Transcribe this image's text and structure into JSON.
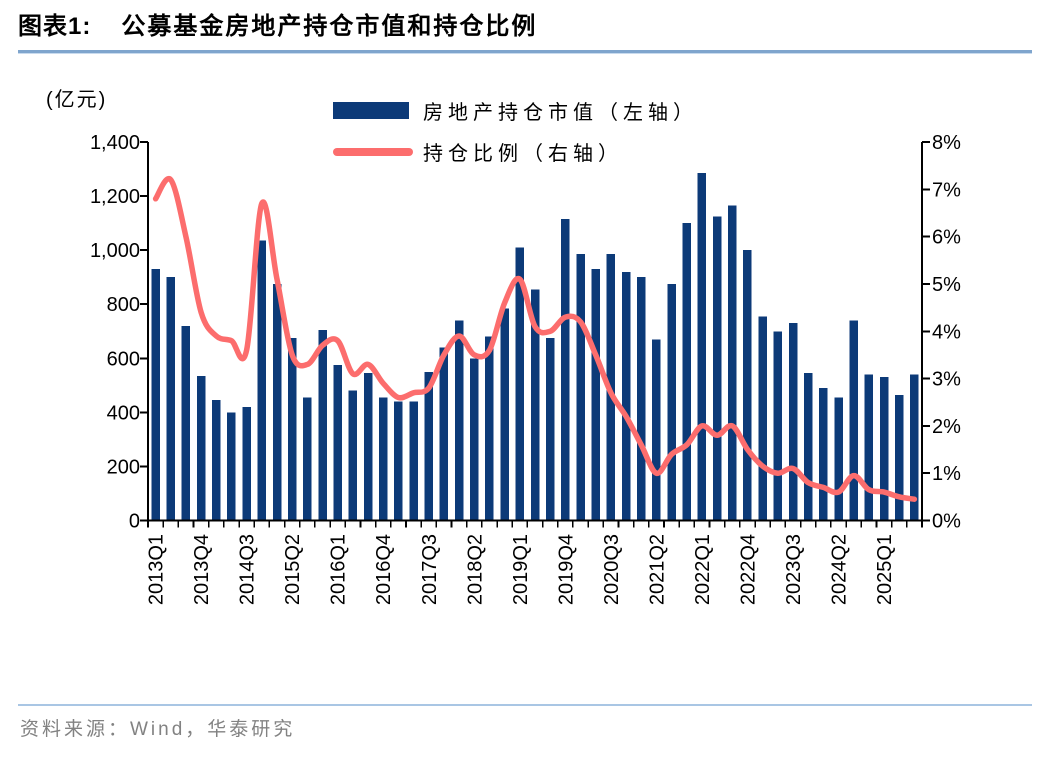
{
  "header": {
    "chart_label": "图表1:",
    "title": "公募基金房地产持仓市值和持仓比例"
  },
  "source": {
    "text": "资料来源：Wind，华泰研究"
  },
  "colors": {
    "bar": "#0c3a78",
    "line": "#fc6d6d",
    "axis": "#000000",
    "title_rule": "#7fa5cd",
    "footer_rule": "#a9c6e4",
    "source_text": "#828282"
  },
  "chart_data": {
    "type": "bar",
    "title": "公募基金房地产持仓市值和持仓比例",
    "grid": false,
    "legend_position": "top-center",
    "categories": [
      "2013Q1",
      "2013Q2",
      "2013Q3",
      "2013Q4",
      "2014Q1",
      "2014Q2",
      "2014Q3",
      "2014Q4",
      "2015Q1",
      "2015Q2",
      "2015Q3",
      "2015Q4",
      "2016Q1",
      "2016Q2",
      "2016Q3",
      "2016Q4",
      "2017Q1",
      "2017Q2",
      "2017Q3",
      "2017Q4",
      "2018Q1",
      "2018Q2",
      "2018Q3",
      "2018Q4",
      "2019Q1",
      "2019Q2",
      "2019Q3",
      "2019Q4",
      "2020Q1",
      "2020Q2",
      "2020Q3",
      "2020Q4",
      "2021Q1",
      "2021Q2",
      "2021Q3",
      "2021Q4",
      "2022Q1",
      "2022Q2",
      "2022Q3",
      "2022Q4",
      "2023Q1",
      "2023Q2",
      "2023Q3",
      "2023Q4",
      "2024Q1",
      "2024Q2",
      "2024Q3",
      "2024Q4",
      "2025Q1",
      "2025Q2",
      "2025Q3"
    ],
    "series": [
      {
        "name": "房地产持仓市值（左轴）",
        "type": "bar",
        "axis": "left",
        "unit": "亿元",
        "values": [
          930,
          900,
          720,
          535,
          445,
          400,
          420,
          1035,
          875,
          675,
          455,
          705,
          575,
          480,
          545,
          455,
          440,
          440,
          550,
          640,
          740,
          600,
          680,
          785,
          1010,
          855,
          675,
          1115,
          985,
          930,
          985,
          920,
          900,
          670,
          875,
          1100,
          1285,
          1125,
          1165,
          1000,
          755,
          700,
          730,
          545,
          490,
          455,
          740,
          540,
          530,
          465,
          540
        ]
      },
      {
        "name": "持仓比例（右轴）",
        "type": "line",
        "axis": "right",
        "unit": "%",
        "values": [
          6.8,
          7.2,
          6.0,
          4.4,
          3.9,
          3.8,
          3.6,
          6.7,
          5.1,
          3.5,
          3.3,
          3.7,
          3.8,
          3.1,
          3.3,
          2.9,
          2.6,
          2.7,
          2.8,
          3.5,
          3.9,
          3.5,
          3.6,
          4.6,
          5.1,
          4.1,
          4.0,
          4.3,
          4.2,
          3.5,
          2.7,
          2.2,
          1.6,
          1.0,
          1.4,
          1.6,
          2.0,
          1.8,
          2.0,
          1.5,
          1.15,
          1.0,
          1.1,
          0.8,
          0.7,
          0.6,
          0.95,
          0.65,
          0.6,
          0.5,
          0.45
        ]
      }
    ],
    "left_axis": {
      "label": "(亿元)",
      "min": 0,
      "max": 1400,
      "step": 200,
      "tick_labels": [
        "0",
        "200",
        "400",
        "600",
        "800",
        "1,000",
        "1,200",
        "1,400"
      ]
    },
    "right_axis": {
      "min": 0,
      "max": 8,
      "step": 1,
      "tick_labels": [
        "0%",
        "1%",
        "2%",
        "3%",
        "4%",
        "5%",
        "6%",
        "7%",
        "8%"
      ]
    },
    "x_axis": {
      "label_step": 3,
      "labeled_ticks": [
        "2013Q1",
        "2013Q4",
        "2014Q3",
        "2015Q2",
        "2016Q1",
        "2016Q4",
        "2017Q3",
        "2018Q2",
        "2019Q1",
        "2019Q4",
        "2020Q3",
        "2021Q2",
        "2022Q1",
        "2022Q4",
        "2023Q3",
        "2024Q2",
        "2025Q1"
      ]
    }
  }
}
